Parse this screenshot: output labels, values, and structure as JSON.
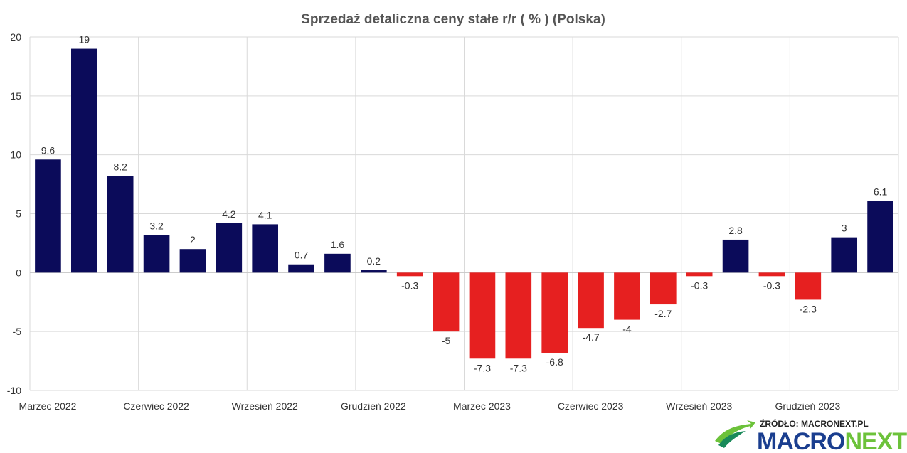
{
  "chart_data": {
    "type": "bar",
    "title": "Sprzedaż detaliczna ceny stałe r/r ( % ) (Polska)",
    "xlabel": "",
    "ylabel": "",
    "ylim": [
      -10,
      20
    ],
    "yticks": [
      -10,
      -5,
      0,
      5,
      10,
      15,
      20
    ],
    "grid": true,
    "legend": "none",
    "categories": [
      "2022-03",
      "2022-04",
      "2022-05",
      "2022-06",
      "2022-07",
      "2022-08",
      "2022-09",
      "2022-10",
      "2022-11",
      "2022-12",
      "2023-01",
      "2023-02",
      "2023-03",
      "2023-04",
      "2023-05",
      "2023-06",
      "2023-07",
      "2023-08",
      "2023-09",
      "2023-10",
      "2023-11",
      "2023-12",
      "2024-01",
      "2024-02"
    ],
    "values": [
      9.6,
      19,
      8.2,
      3.2,
      2,
      4.2,
      4.1,
      0.7,
      1.6,
      0.2,
      -0.3,
      -5,
      -7.3,
      -7.3,
      -6.8,
      -4.7,
      -4,
      -2.7,
      -0.3,
      2.8,
      -0.3,
      -2.3,
      3,
      6.1
    ],
    "value_labels": [
      "9.6",
      "19",
      "8.2",
      "3.2",
      "2",
      "4.2",
      "4.1",
      "0.7",
      "1.6",
      "0.2",
      "-0.3",
      "-5",
      "-7.3",
      "-7.3",
      "-6.8",
      "-4.7",
      "-4",
      "-2.7",
      "-0.3",
      "2.8",
      "-0.3",
      "-2.3",
      "3",
      "6.1"
    ],
    "x_tick_labels": [
      {
        "index": 0,
        "label": "Marzec 2022"
      },
      {
        "index": 3,
        "label": "Czerwiec 2022"
      },
      {
        "index": 6,
        "label": "Wrzesień 2022"
      },
      {
        "index": 9,
        "label": "Grudzień 2022"
      },
      {
        "index": 12,
        "label": "Marzec 2023"
      },
      {
        "index": 15,
        "label": "Czerwiec 2023"
      },
      {
        "index": 18,
        "label": "Wrzesień 2023"
      },
      {
        "index": 21,
        "label": "Grudzień 2023"
      }
    ],
    "colors": {
      "positive": "#0b0b5a",
      "negative": "#e62020"
    }
  },
  "source": {
    "text": "ŹRÓDŁO: MACRONEXT.PL",
    "brand_part1": "MACRO",
    "brand_part2": "NEXT"
  }
}
